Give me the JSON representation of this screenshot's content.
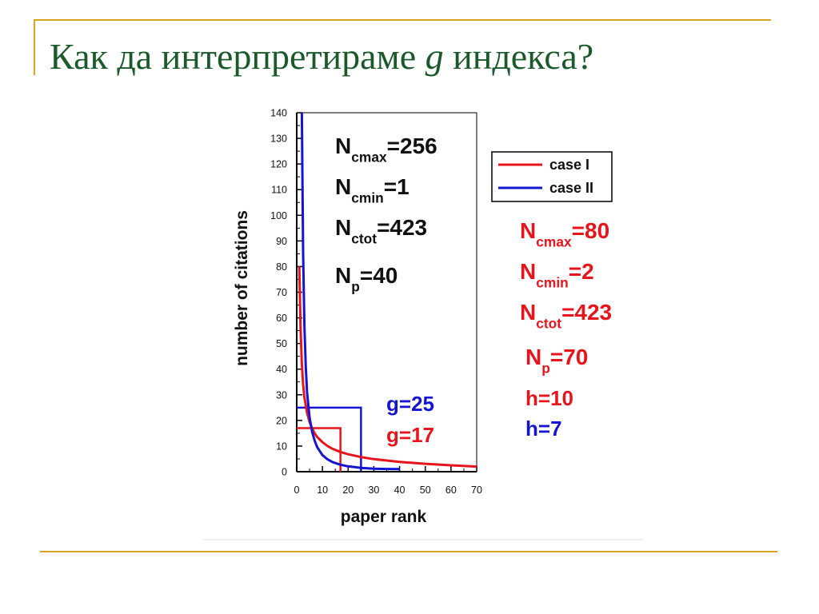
{
  "slide": {
    "title_before": "Как да интерпретираме ",
    "title_g": "g",
    "title_after": " индекса?"
  },
  "colors": {
    "case_I": "#e8141c",
    "case_II": "#1414d2",
    "text_black": "#111111",
    "title_green": "#1a5a2a",
    "rule_gold": "#d9a520"
  },
  "chart_data": {
    "type": "line",
    "xlabel": "paper rank",
    "ylabel": "number of citations",
    "xlim": [
      0,
      70
    ],
    "ylim": [
      0,
      140
    ],
    "xticks": [
      0,
      10,
      20,
      30,
      40,
      50,
      60,
      70
    ],
    "yticks": [
      0,
      10,
      20,
      30,
      40,
      50,
      60,
      70,
      80,
      90,
      100,
      110,
      120,
      130,
      140
    ],
    "grid": false,
    "legend_position": "right",
    "series": [
      {
        "name": "case I",
        "color": "#e8141c",
        "x": [
          1,
          1.5,
          2,
          2.5,
          3,
          4,
          5,
          6,
          7,
          8,
          10,
          12,
          14,
          17,
          20,
          25,
          30,
          40,
          50,
          60,
          70
        ],
        "y": [
          80,
          56,
          42,
          34,
          29,
          23,
          19.3,
          16.8,
          14.9,
          13.5,
          11.5,
          10,
          8.9,
          7.7,
          6.8,
          5.7,
          4.9,
          3.8,
          3.1,
          2.5,
          2
        ]
      },
      {
        "name": "case II",
        "color": "#1414d2",
        "x": [
          2,
          2.5,
          3,
          3.5,
          4,
          5,
          6,
          7,
          8,
          10,
          12,
          14,
          17,
          20,
          25,
          30,
          35,
          40
        ],
        "y": [
          140,
          85,
          57,
          41,
          31,
          21,
          15.5,
          12,
          9.5,
          6.5,
          4.8,
          3.7,
          2.7,
          2.1,
          1.5,
          1.2,
          1.05,
          1
        ]
      }
    ],
    "g_boxes": [
      {
        "series": "case II",
        "g": 25,
        "label": "g=25"
      },
      {
        "series": "case I",
        "g": 17,
        "label": "g=17"
      }
    ],
    "annotations": {
      "case_II_stats": [
        {
          "main": "N",
          "sub": "cmax",
          "value": "=256"
        },
        {
          "main": "N",
          "sub": "cmin",
          "value": "=1"
        },
        {
          "main": "N",
          "sub": "ctot",
          "value": "=423"
        },
        {
          "main": "N",
          "sub": "p",
          "value": "=40"
        }
      ],
      "case_I_stats": [
        {
          "main": "N",
          "sub": "cmax",
          "value": "=80"
        },
        {
          "main": "N",
          "sub": "cmin",
          "value": "=2"
        },
        {
          "main": "N",
          "sub": "ctot",
          "value": "=423"
        },
        {
          "main": "N",
          "sub": "p",
          "value": "=70"
        }
      ],
      "h_case_I": "h=10",
      "h_case_II": "h=7"
    }
  }
}
